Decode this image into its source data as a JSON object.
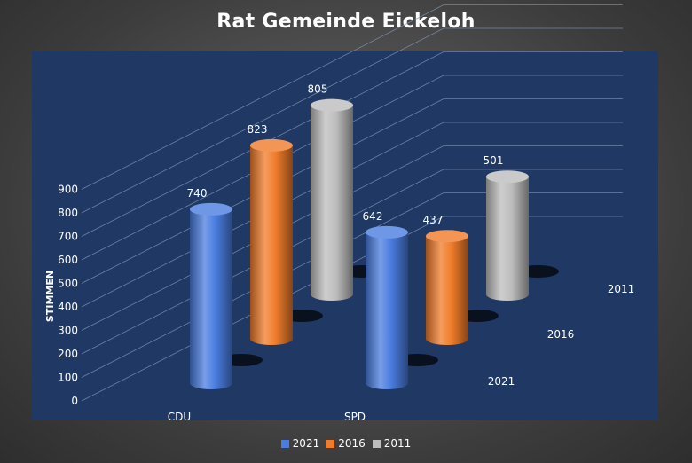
{
  "chart_data": {
    "type": "bar",
    "title": "Rat Gemeinde Eickeloh",
    "categories": [
      "CDU",
      "SPD"
    ],
    "series": [
      {
        "name": "2021",
        "values": [
          740,
          642
        ],
        "color": "#4a7de0"
      },
      {
        "name": "2016",
        "values": [
          823,
          437
        ],
        "color": "#f07c2a"
      },
      {
        "name": "2011",
        "values": [
          805,
          501
        ],
        "color": "#bdbdbd"
      }
    ],
    "ylabel": "STIMMEN",
    "ylim": [
      0,
      900
    ],
    "yticks": [
      0,
      100,
      200,
      300,
      400,
      500,
      600,
      700,
      800,
      900
    ],
    "grid": true,
    "legend": "bottom",
    "style": "3d-cylinder",
    "plot_background": "#1f3864"
  }
}
